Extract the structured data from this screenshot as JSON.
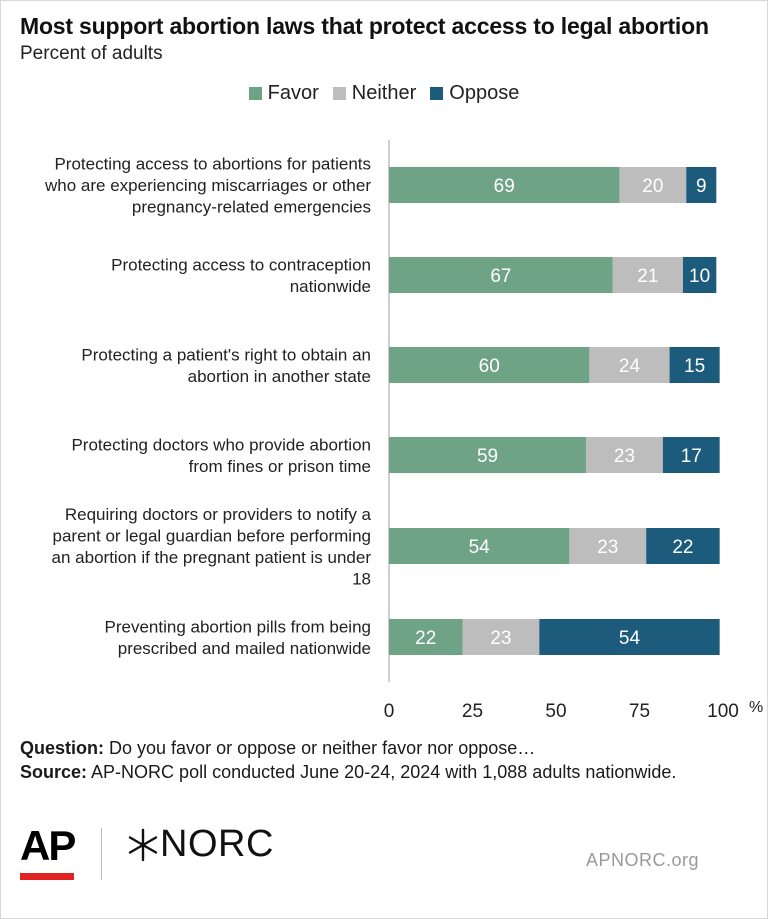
{
  "title": "Most support abortion laws that protect access to legal abortion",
  "subtitle": "Percent of adults",
  "legend": [
    {
      "label": "Favor",
      "color": "#6fa386"
    },
    {
      "label": "Neither",
      "color": "#bdbdbd"
    },
    {
      "label": "Oppose",
      "color": "#1d5b7c"
    }
  ],
  "chart_data": {
    "type": "bar",
    "orientation": "horizontal",
    "stacked": true,
    "categories": [
      [
        "Protecting access to abortions for patients",
        "who are experiencing miscarriages or other",
        "pregnancy-related emergencies"
      ],
      [
        "Protecting access to contraception",
        "nationwide"
      ],
      [
        "Protecting a patient's right to obtain an",
        "abortion in another state"
      ],
      [
        "Protecting doctors who provide abortion",
        "from fines or prison time"
      ],
      [
        "Requiring doctors or providers to notify a",
        "parent or legal guardian before performing",
        "an abortion if the pregnant patient is under",
        "18"
      ],
      [
        "Preventing abortion pills from being",
        "prescribed and mailed nationwide"
      ]
    ],
    "series": [
      {
        "name": "Favor",
        "color": "#6fa386",
        "values": [
          69,
          67,
          60,
          59,
          54,
          22
        ]
      },
      {
        "name": "Neither",
        "color": "#bdbdbd",
        "values": [
          20,
          21,
          24,
          23,
          23,
          23
        ]
      },
      {
        "name": "Oppose",
        "color": "#1d5b7c",
        "values": [
          9,
          10,
          15,
          17,
          22,
          54
        ]
      }
    ],
    "xlim": [
      0,
      100
    ],
    "xticks": [
      0,
      25,
      50,
      75,
      100
    ],
    "xtick_labels": [
      "0",
      "25",
      "50",
      "75",
      "100"
    ],
    "x_unit": "%",
    "legend_position": "top-center"
  },
  "footer": {
    "question_label": "Question:",
    "question_text": "Do you favor or oppose or neither favor nor oppose…",
    "source_label": "Source:",
    "source_text": "AP-NORC poll conducted June 20-24, 2024 with 1,088 adults nationwide."
  },
  "logos": {
    "ap": "AP",
    "norc": "NORC",
    "site": "APNORC.org"
  }
}
